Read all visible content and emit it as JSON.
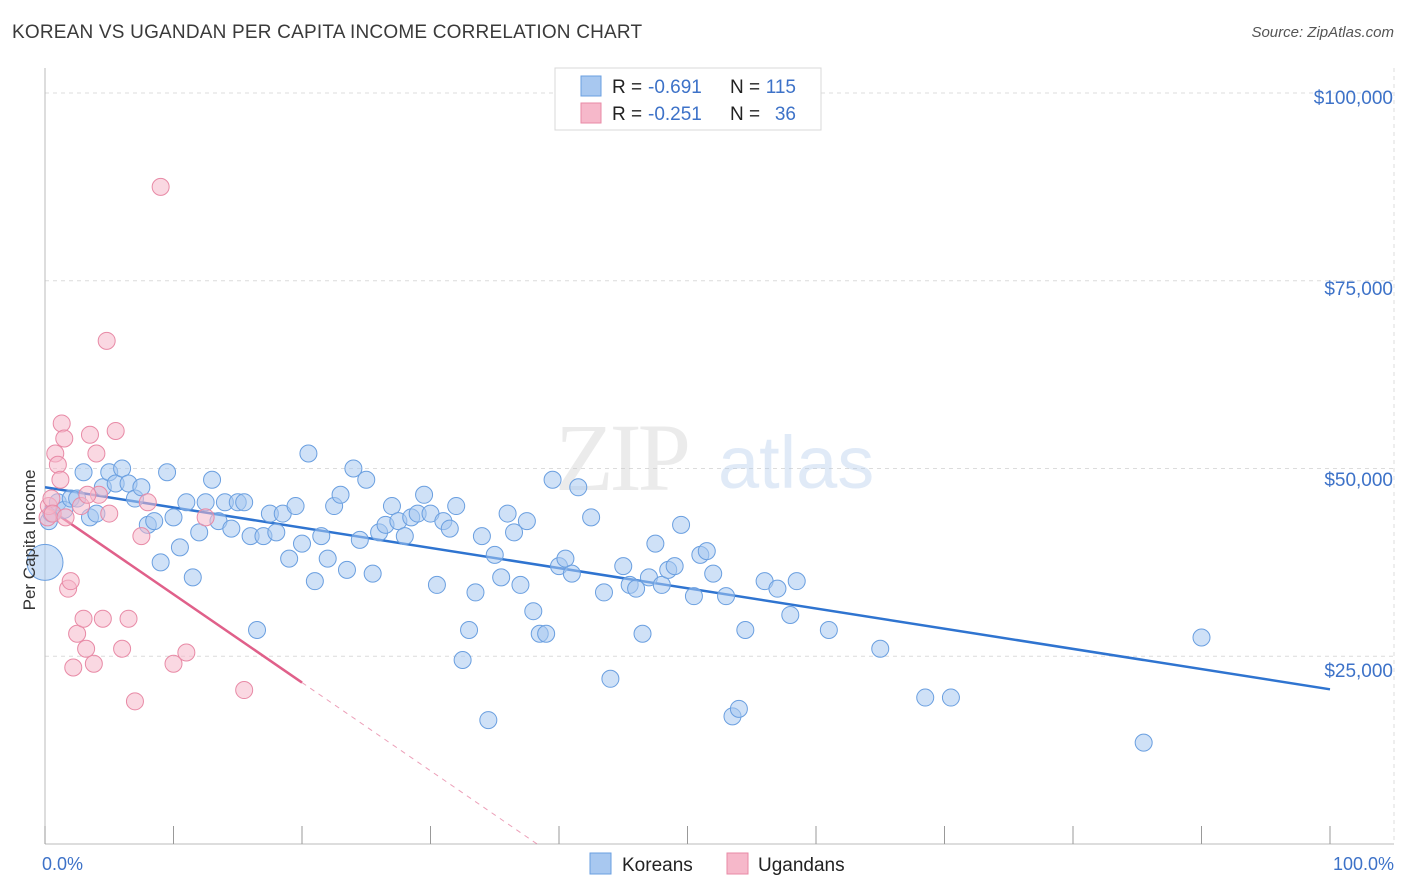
{
  "header": {
    "title": "KOREAN VS UGANDAN PER CAPITA INCOME CORRELATION CHART",
    "source": "Source: ZipAtlas.com"
  },
  "colors": {
    "korean_fill": "#a8c8f0",
    "korean_stroke": "#6a9fe0",
    "korean_line": "#2f74d0",
    "ugandan_fill": "#f6b8ca",
    "ugandan_stroke": "#e88aa6",
    "ugandan_line": "#e0608a",
    "axis_text": "#3d72c8",
    "grid": "#dcdcdc"
  },
  "legend": {
    "rows": [
      {
        "r_label": "R = ",
        "r_value": "-0.691",
        "n_label": "N = ",
        "n_value": "115"
      },
      {
        "r_label": "R = ",
        "r_value": "-0.251",
        "n_label": "N = ",
        "n_value": "36"
      }
    ]
  },
  "bottom_legend": {
    "items": [
      "Koreans",
      "Ugandans"
    ]
  },
  "chart_data": {
    "type": "scatter",
    "title": "KOREAN VS UGANDAN PER CAPITA INCOME CORRELATION CHART",
    "ylabel": "Per Capita Income",
    "xlabel": "",
    "x_tick_labels": [
      "0.0%",
      "100.0%"
    ],
    "y_tick_labels": [
      "$25,000",
      "$50,000",
      "$75,000",
      "$100,000"
    ],
    "y_ticks": [
      25000,
      50000,
      75000,
      100000
    ],
    "xlim": [
      0,
      100
    ],
    "ylim": [
      0,
      102000
    ],
    "grid": true,
    "legend_position": "top-center",
    "watermark": "ZIPatlas",
    "series": [
      {
        "name": "Koreans",
        "R": -0.691,
        "N": 115,
        "trend": {
          "x": [
            0,
            100
          ],
          "y": [
            47500,
            20600
          ]
        },
        "points": [
          [
            0.3,
            43000
          ],
          [
            0.5,
            44000
          ],
          [
            1.0,
            45500
          ],
          [
            1.5,
            44500
          ],
          [
            2.0,
            46000
          ],
          [
            2.5,
            46000
          ],
          [
            3.0,
            49500
          ],
          [
            3.5,
            43500
          ],
          [
            4.0,
            44000
          ],
          [
            4.5,
            47500
          ],
          [
            5.0,
            49500
          ],
          [
            5.5,
            48000
          ],
          [
            6.0,
            50000
          ],
          [
            6.5,
            48000
          ],
          [
            7.0,
            46000
          ],
          [
            7.5,
            47500
          ],
          [
            8.0,
            42500
          ],
          [
            8.5,
            43000
          ],
          [
            9.0,
            37500
          ],
          [
            9.5,
            49500
          ],
          [
            10.0,
            43500
          ],
          [
            10.5,
            39500
          ],
          [
            11.0,
            45500
          ],
          [
            11.5,
            35500
          ],
          [
            12.0,
            41500
          ],
          [
            12.5,
            45500
          ],
          [
            13.0,
            48500
          ],
          [
            13.5,
            43000
          ],
          [
            14.0,
            45500
          ],
          [
            14.5,
            42000
          ],
          [
            15.0,
            45500
          ],
          [
            15.5,
            45500
          ],
          [
            16.0,
            41000
          ],
          [
            16.5,
            28500
          ],
          [
            17.0,
            41000
          ],
          [
            17.5,
            44000
          ],
          [
            18.0,
            41500
          ],
          [
            18.5,
            44000
          ],
          [
            19.0,
            38000
          ],
          [
            19.5,
            45000
          ],
          [
            20.0,
            40000
          ],
          [
            20.5,
            52000
          ],
          [
            21.0,
            35000
          ],
          [
            21.5,
            41000
          ],
          [
            22.0,
            38000
          ],
          [
            22.5,
            45000
          ],
          [
            23.0,
            46500
          ],
          [
            23.5,
            36500
          ],
          [
            24.0,
            50000
          ],
          [
            24.5,
            40500
          ],
          [
            25.0,
            48500
          ],
          [
            25.5,
            36000
          ],
          [
            26.0,
            41500
          ],
          [
            26.5,
            42500
          ],
          [
            27.0,
            45000
          ],
          [
            27.5,
            43000
          ],
          [
            28.0,
            41000
          ],
          [
            28.5,
            43500
          ],
          [
            29.0,
            44000
          ],
          [
            29.5,
            46500
          ],
          [
            30.0,
            44000
          ],
          [
            30.5,
            34500
          ],
          [
            31.0,
            43000
          ],
          [
            31.5,
            42000
          ],
          [
            32.0,
            45000
          ],
          [
            32.5,
            24500
          ],
          [
            33.0,
            28500
          ],
          [
            33.5,
            33500
          ],
          [
            34.0,
            41000
          ],
          [
            34.5,
            16500
          ],
          [
            35.0,
            38500
          ],
          [
            35.5,
            35500
          ],
          [
            36.0,
            44000
          ],
          [
            36.5,
            41500
          ],
          [
            37.0,
            34500
          ],
          [
            37.5,
            43000
          ],
          [
            38.0,
            31000
          ],
          [
            38.5,
            28000
          ],
          [
            39.0,
            28000
          ],
          [
            39.5,
            48500
          ],
          [
            40.0,
            37000
          ],
          [
            40.5,
            38000
          ],
          [
            41.0,
            36000
          ],
          [
            41.5,
            47500
          ],
          [
            42.5,
            43500
          ],
          [
            43.5,
            33500
          ],
          [
            44.0,
            22000
          ],
          [
            45.0,
            37000
          ],
          [
            45.5,
            34500
          ],
          [
            46.0,
            34000
          ],
          [
            46.5,
            28000
          ],
          [
            47.0,
            35500
          ],
          [
            47.5,
            40000
          ],
          [
            48.0,
            34500
          ],
          [
            48.5,
            36500
          ],
          [
            49.0,
            37000
          ],
          [
            49.5,
            42500
          ],
          [
            50.5,
            33000
          ],
          [
            51.0,
            38500
          ],
          [
            51.5,
            39000
          ],
          [
            52.0,
            36000
          ],
          [
            53.0,
            33000
          ],
          [
            53.5,
            17000
          ],
          [
            54.0,
            18000
          ],
          [
            54.5,
            28500
          ],
          [
            56.0,
            35000
          ],
          [
            57.0,
            34000
          ],
          [
            58.0,
            30500
          ],
          [
            58.5,
            35000
          ],
          [
            61.0,
            28500
          ],
          [
            65.0,
            26000
          ],
          [
            68.5,
            19500
          ],
          [
            70.5,
            19500
          ],
          [
            85.5,
            13500
          ],
          [
            90.0,
            27500
          ]
        ]
      },
      {
        "name": "Ugandans",
        "R": -0.251,
        "N": 36,
        "trend": {
          "x": [
            0,
            20
          ],
          "y": [
            45000,
            21500
          ],
          "dashed_extension": {
            "x": [
              20,
              40
            ],
            "y": [
              21500,
              -2000
            ]
          }
        },
        "points": [
          [
            0.2,
            43500
          ],
          [
            0.3,
            45000
          ],
          [
            0.5,
            46000
          ],
          [
            0.6,
            44000
          ],
          [
            0.8,
            52000
          ],
          [
            1.0,
            50500
          ],
          [
            1.2,
            48500
          ],
          [
            1.3,
            56000
          ],
          [
            1.5,
            54000
          ],
          [
            1.6,
            43500
          ],
          [
            1.8,
            34000
          ],
          [
            2.0,
            35000
          ],
          [
            2.2,
            23500
          ],
          [
            2.5,
            28000
          ],
          [
            2.8,
            45000
          ],
          [
            3.0,
            30000
          ],
          [
            3.2,
            26000
          ],
          [
            3.5,
            54500
          ],
          [
            3.8,
            24000
          ],
          [
            4.0,
            52000
          ],
          [
            4.2,
            46500
          ],
          [
            4.5,
            30000
          ],
          [
            4.8,
            67000
          ],
          [
            5.0,
            44000
          ],
          [
            5.5,
            55000
          ],
          [
            6.0,
            26000
          ],
          [
            6.5,
            30000
          ],
          [
            7.0,
            19000
          ],
          [
            7.5,
            41000
          ],
          [
            8.0,
            45500
          ],
          [
            9.0,
            87500
          ],
          [
            10.0,
            24000
          ],
          [
            11.0,
            25500
          ],
          [
            12.5,
            43500
          ],
          [
            15.5,
            20500
          ],
          [
            3.3,
            46500
          ]
        ]
      }
    ]
  }
}
